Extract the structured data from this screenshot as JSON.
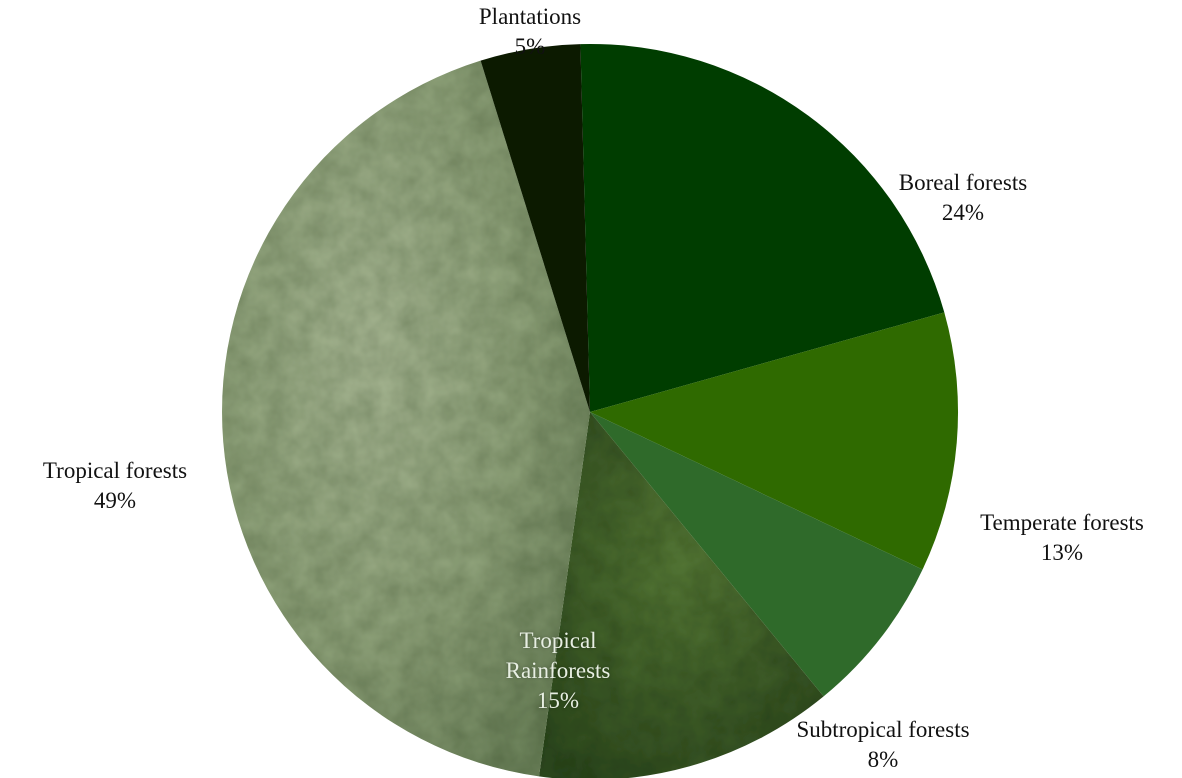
{
  "chart_data": {
    "type": "pie",
    "slices": [
      {
        "label": "Boreal forests",
        "value": 24,
        "value_label": "24%",
        "color": "#003d00",
        "fill_style": "solid"
      },
      {
        "label": "Temperate forests",
        "value": 13,
        "value_label": "13%",
        "color": "#2f6a00",
        "fill_style": "solid"
      },
      {
        "label": "Subtropical forests",
        "value": 8,
        "value_label": "8%",
        "color": "#2f6a2a",
        "fill_style": "solid"
      },
      {
        "label": "Tropical Rainforests",
        "value": 15,
        "value_label": "15%",
        "color": "#3f5e2a",
        "fill_style": "photo-texture-dark"
      },
      {
        "label": "Tropical forests",
        "value": 49,
        "value_label": "49%",
        "color": "#8fa27a",
        "fill_style": "photo-texture-light"
      },
      {
        "label": "Plantations",
        "value": 5,
        "value_label": "5%",
        "color": "#0c1a00",
        "fill_style": "solid"
      }
    ],
    "label_display": "outside, light text on photo slice",
    "legend": "none",
    "title": ""
  }
}
